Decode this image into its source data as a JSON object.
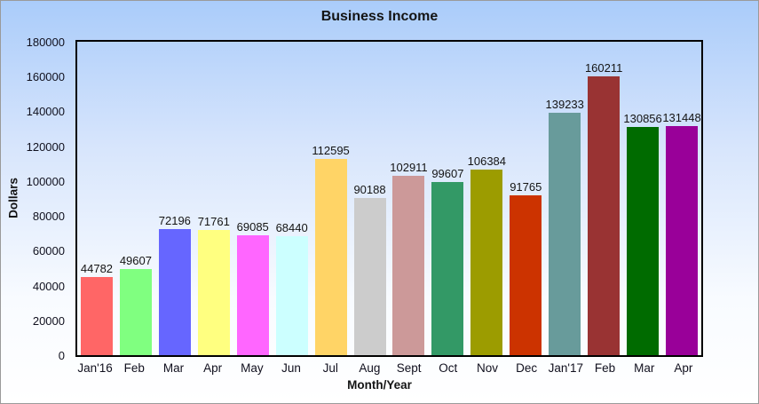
{
  "window": {
    "border_color": "#9A9A9A",
    "background_gradient_top": "#AACCFA",
    "background_gradient_bottom": "#FFFFFF",
    "axis_color": "#000000",
    "text_color": "#141414"
  },
  "chart_data": {
    "type": "bar",
    "title": "Business Income",
    "xlabel": "Month/Year",
    "ylabel": "Dollars",
    "ylim": [
      0,
      180000
    ],
    "yticks": [
      0,
      20000,
      40000,
      60000,
      80000,
      100000,
      120000,
      140000,
      160000,
      180000
    ],
    "grid": false,
    "legend_position": "none",
    "value_labels_shown": true,
    "categories": [
      "Jan'16",
      "Feb",
      "Mar",
      "Apr",
      "May",
      "Jun",
      "Jul",
      "Aug",
      "Sept",
      "Oct",
      "Nov",
      "Dec",
      "Jan'17",
      "Feb",
      "Mar",
      "Apr"
    ],
    "values": [
      44782,
      49607,
      72196,
      71761,
      69085,
      68440,
      112595,
      90188,
      102911,
      99607,
      106384,
      91765,
      139233,
      160211,
      130856,
      131448
    ],
    "bar_colors": [
      "#FF6666",
      "#80FF80",
      "#6666FF",
      "#FFFF80",
      "#FF66FF",
      "#CCFFFF",
      "#FFD466",
      "#CCCCCC",
      "#CC9999",
      "#339966",
      "#9C9C00",
      "#CC3300",
      "#689B9B",
      "#993333",
      "#006B00",
      "#990099"
    ]
  }
}
